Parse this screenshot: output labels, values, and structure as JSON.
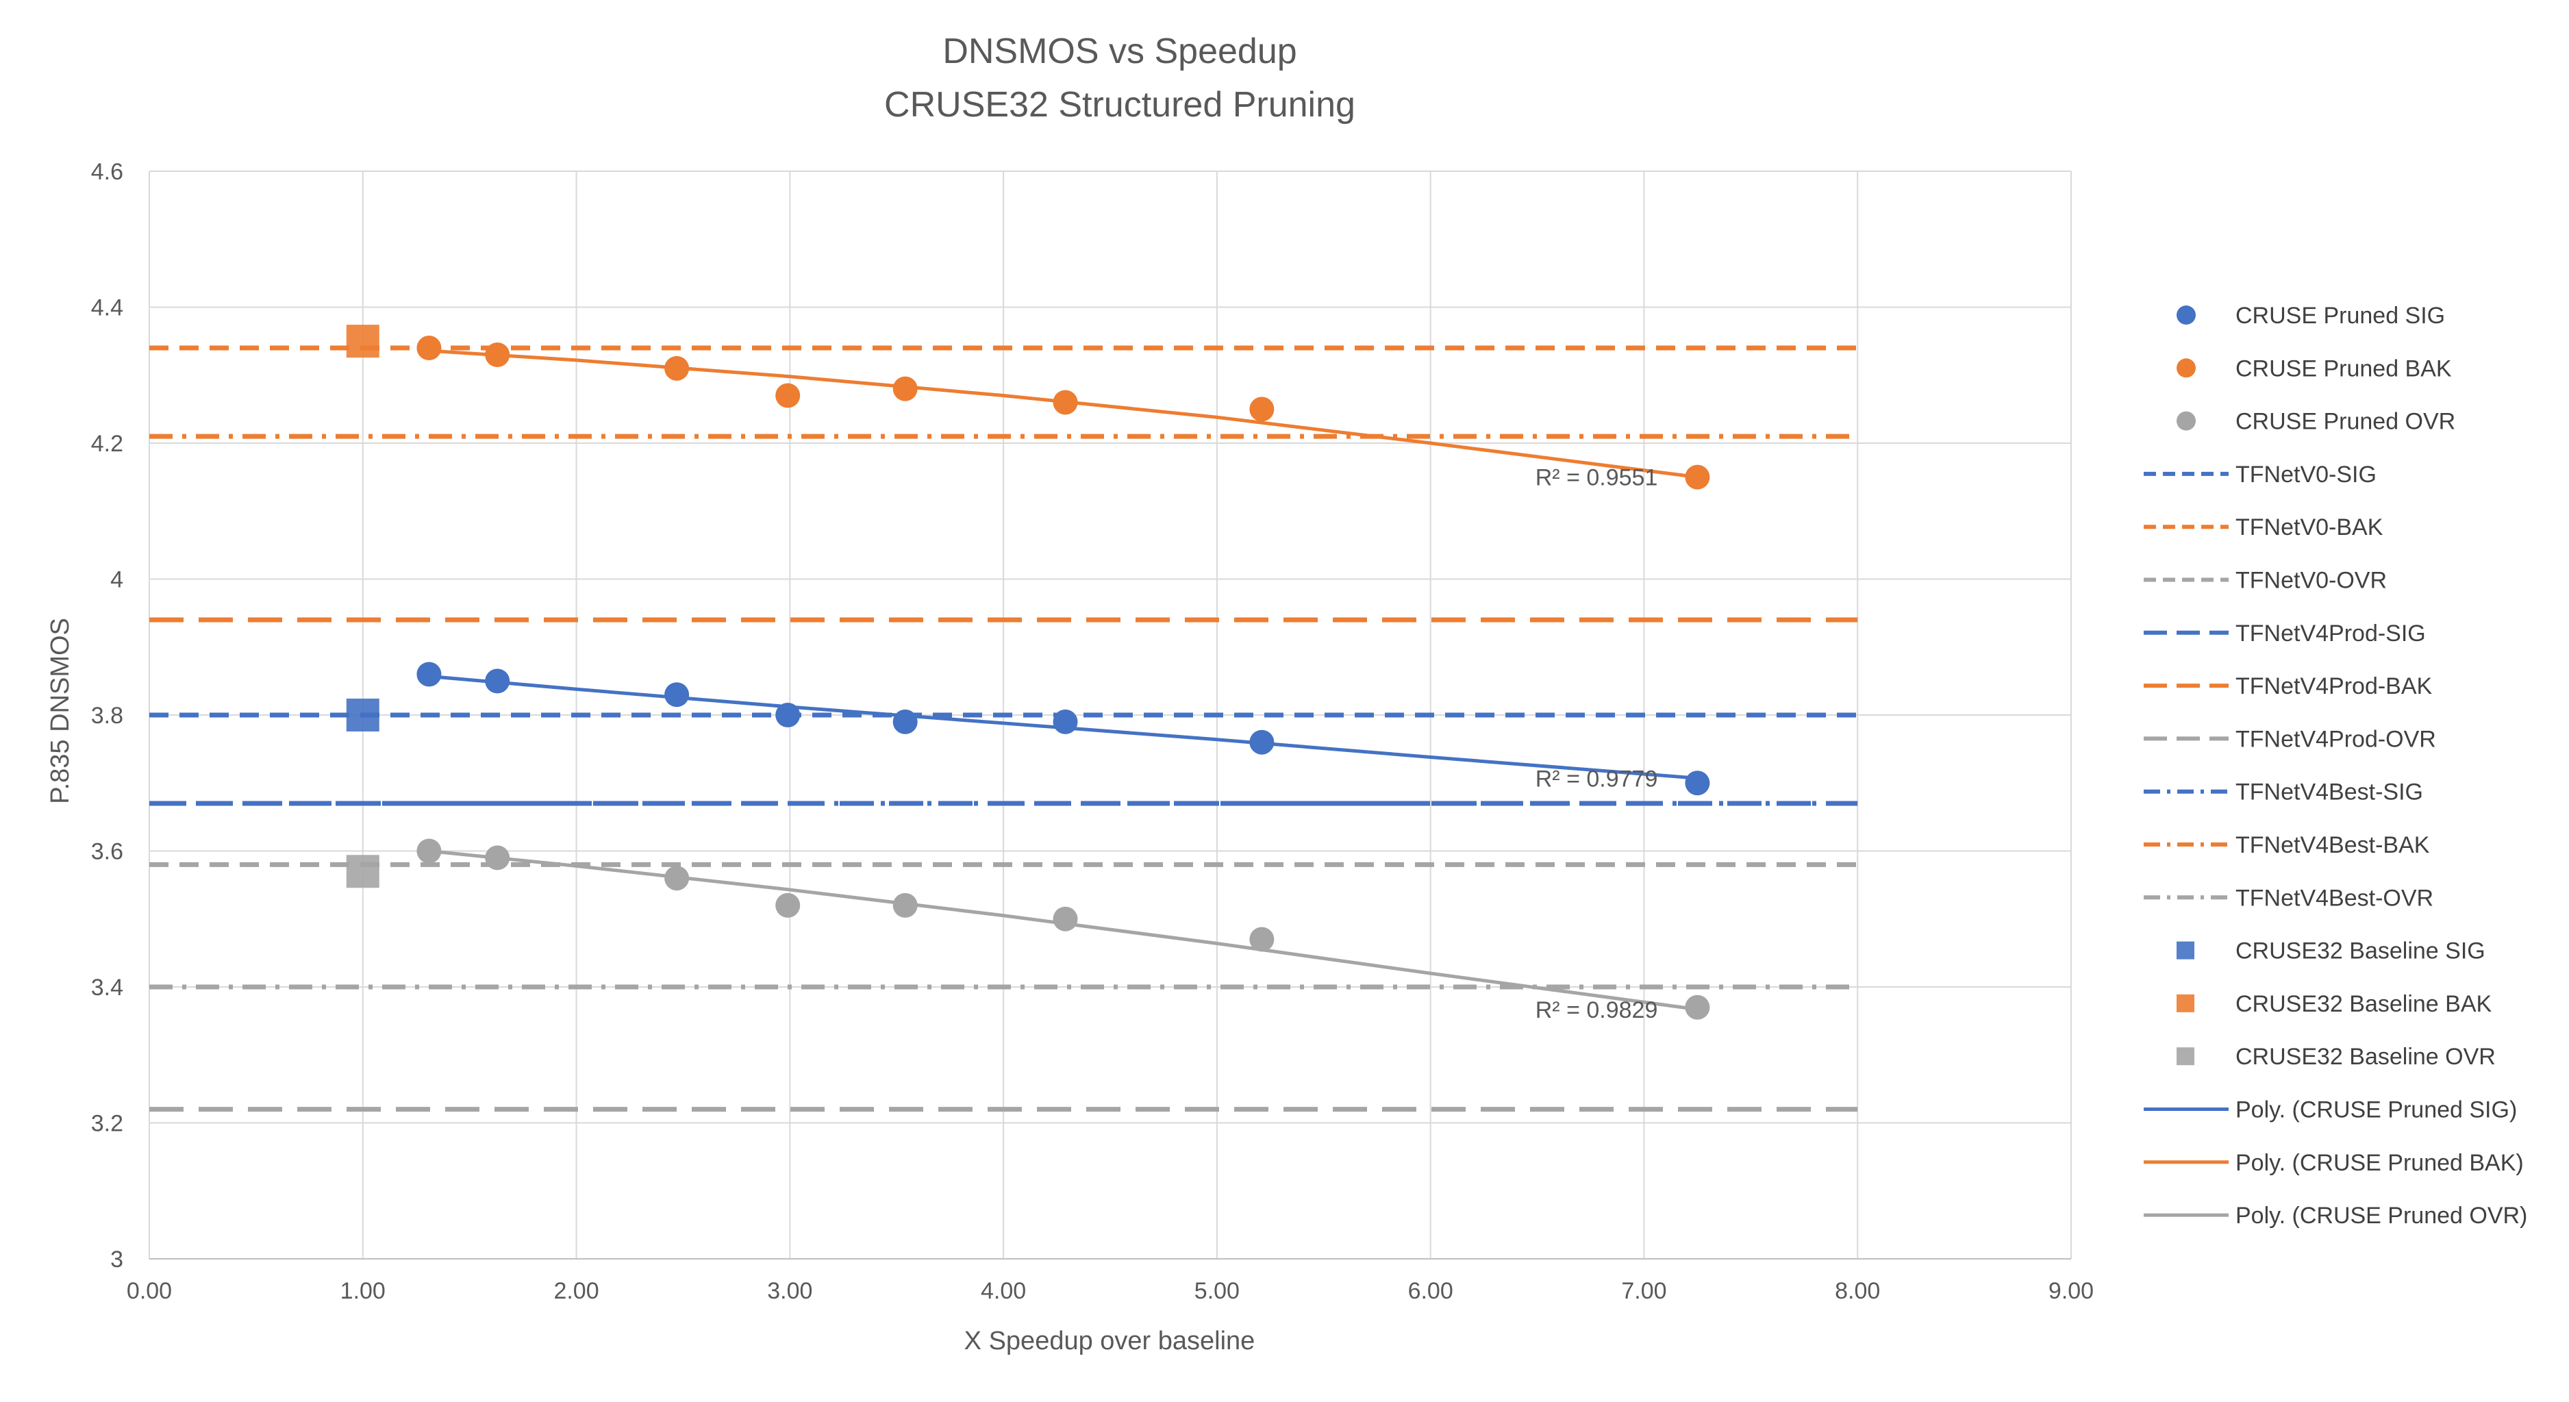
{
  "chart_data": {
    "type": "scatter",
    "title": "DNSMOS vs Speedup",
    "subtitle": "CRUSE32 Structured Pruning",
    "xlabel": "X Speedup over baseline",
    "ylabel": "P.835 DNSMOS",
    "xlim": [
      0,
      9
    ],
    "ylim": [
      3,
      4.6
    ],
    "xticks": [
      "0.00",
      "1.00",
      "2.00",
      "3.00",
      "4.00",
      "5.00",
      "6.00",
      "7.00",
      "8.00",
      "9.00"
    ],
    "yticks": [
      "3",
      "3.2",
      "3.4",
      "3.6",
      "3.8",
      "4",
      "4.2",
      "4.4",
      "4.6"
    ],
    "grid": true,
    "legend_position": "right",
    "series": [
      {
        "name": "CRUSE Pruned SIG",
        "kind": "markers",
        "marker": "circle",
        "color": "#4472C4",
        "x": [
          1.31,
          1.63,
          2.47,
          2.99,
          3.54,
          4.29,
          5.21,
          7.25
        ],
        "y": [
          3.86,
          3.85,
          3.83,
          3.8,
          3.79,
          3.79,
          3.76,
          3.7
        ]
      },
      {
        "name": "CRUSE Pruned BAK",
        "kind": "markers",
        "marker": "circle",
        "color": "#ED7D31",
        "x": [
          1.31,
          1.63,
          2.47,
          2.99,
          3.54,
          4.29,
          5.21,
          7.25
        ],
        "y": [
          4.34,
          4.33,
          4.31,
          4.27,
          4.28,
          4.26,
          4.25,
          4.15
        ]
      },
      {
        "name": "CRUSE Pruned OVR",
        "kind": "markers",
        "marker": "circle",
        "color": "#A5A5A5",
        "x": [
          1.31,
          1.63,
          2.47,
          2.99,
          3.54,
          4.29,
          5.21,
          7.25
        ],
        "y": [
          3.6,
          3.59,
          3.56,
          3.52,
          3.52,
          3.5,
          3.47,
          3.37
        ]
      },
      {
        "name": "TFNetV0-SIG",
        "kind": "hline",
        "style": "dash",
        "color": "#4472C4",
        "x": [
          0,
          8
        ],
        "y": [
          3.8,
          3.8
        ]
      },
      {
        "name": "TFNetV0-BAK",
        "kind": "hline",
        "style": "dash",
        "color": "#ED7D31",
        "x": [
          0,
          8
        ],
        "y": [
          4.34,
          4.34
        ]
      },
      {
        "name": "TFNetV0-OVR",
        "kind": "hline",
        "style": "dash",
        "color": "#A5A5A5",
        "x": [
          0,
          8
        ],
        "y": [
          3.58,
          3.58
        ]
      },
      {
        "name": "TFNetV4Prod-SIG",
        "kind": "hline",
        "style": "longdash",
        "color": "#4472C4",
        "x": [
          0,
          8
        ],
        "y": [
          3.67,
          3.67
        ]
      },
      {
        "name": "TFNetV4Prod-BAK",
        "kind": "hline",
        "style": "longdash",
        "color": "#ED7D31",
        "x": [
          0,
          8
        ],
        "y": [
          3.94,
          3.94
        ]
      },
      {
        "name": "TFNetV4Prod-OVR",
        "kind": "hline",
        "style": "longdash",
        "color": "#A5A5A5",
        "x": [
          0,
          8
        ],
        "y": [
          3.22,
          3.22
        ]
      },
      {
        "name": "TFNetV4Best-SIG",
        "kind": "hline",
        "style": "dashdot",
        "color": "#4472C4",
        "x": [
          0,
          8
        ],
        "y": [
          3.67,
          3.67
        ]
      },
      {
        "name": "TFNetV4Best-BAK",
        "kind": "hline",
        "style": "dashdot",
        "color": "#ED7D31",
        "x": [
          0,
          8
        ],
        "y": [
          4.21,
          4.21
        ]
      },
      {
        "name": "TFNetV4Best-OVR",
        "kind": "hline",
        "style": "dashdot",
        "color": "#A5A5A5",
        "x": [
          0,
          8
        ],
        "y": [
          3.4,
          3.4
        ]
      },
      {
        "name": "CRUSE32 Baseline SIG",
        "kind": "markers",
        "marker": "square",
        "color": "#4472C4",
        "x": [
          1.0
        ],
        "y": [
          3.8
        ]
      },
      {
        "name": "CRUSE32 Baseline BAK",
        "kind": "markers",
        "marker": "square",
        "color": "#ED7D31",
        "x": [
          1.0
        ],
        "y": [
          4.35
        ]
      },
      {
        "name": "CRUSE32 Baseline OVR",
        "kind": "markers",
        "marker": "square",
        "color": "#A5A5A5",
        "x": [
          1.0
        ],
        "y": [
          3.57
        ]
      },
      {
        "name": "Poly. (CRUSE Pruned SIG)",
        "kind": "trend",
        "color": "#4472C4",
        "r2": "R² = 0.9779",
        "x": [
          1.31,
          2.0,
          3.0,
          4.0,
          5.0,
          6.0,
          7.25
        ],
        "y": [
          3.857,
          3.838,
          3.812,
          3.788,
          3.764,
          3.738,
          3.707
        ]
      },
      {
        "name": "Poly. (CRUSE Pruned BAK)",
        "kind": "trend",
        "color": "#ED7D31",
        "r2": "R² = 0.9551",
        "x": [
          1.31,
          2.0,
          3.0,
          4.0,
          5.0,
          6.0,
          7.25
        ],
        "y": [
          4.336,
          4.322,
          4.298,
          4.27,
          4.238,
          4.2,
          4.15
        ]
      },
      {
        "name": "Poly. (CRUSE Pruned OVR)",
        "kind": "trend",
        "color": "#A5A5A5",
        "r2": "R² = 0.9829",
        "x": [
          1.31,
          2.0,
          3.0,
          4.0,
          5.0,
          6.0,
          7.25
        ],
        "y": [
          3.6,
          3.578,
          3.543,
          3.505,
          3.464,
          3.42,
          3.367
        ]
      }
    ]
  }
}
